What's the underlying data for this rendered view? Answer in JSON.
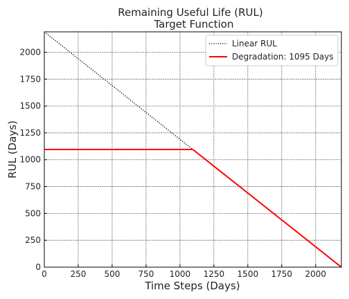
{
  "chart_data": {
    "type": "line",
    "title_line1": "Remaining Useful Life (RUL)",
    "title_line2": "Target Function",
    "xlabel": "Time Steps (Days)",
    "ylabel": "RUL (Days)",
    "xlim": [
      0,
      2190
    ],
    "ylim": [
      0,
      2190
    ],
    "xticks": [
      0,
      250,
      500,
      750,
      1000,
      1250,
      1500,
      1750,
      2000
    ],
    "yticks": [
      0,
      250,
      500,
      750,
      1000,
      1250,
      1500,
      1750,
      2000
    ],
    "grid": true,
    "legend_position": "top-right",
    "series": [
      {
        "name": "Linear RUL",
        "style": "dotted",
        "color": "#000000",
        "x": [
          0,
          2190
        ],
        "y": [
          2190,
          0
        ]
      },
      {
        "name": "Degradation: 1095 Days",
        "style": "solid",
        "color": "#ff0000",
        "x": [
          0,
          1095,
          2190
        ],
        "y": [
          1095,
          1095,
          0
        ]
      }
    ]
  }
}
